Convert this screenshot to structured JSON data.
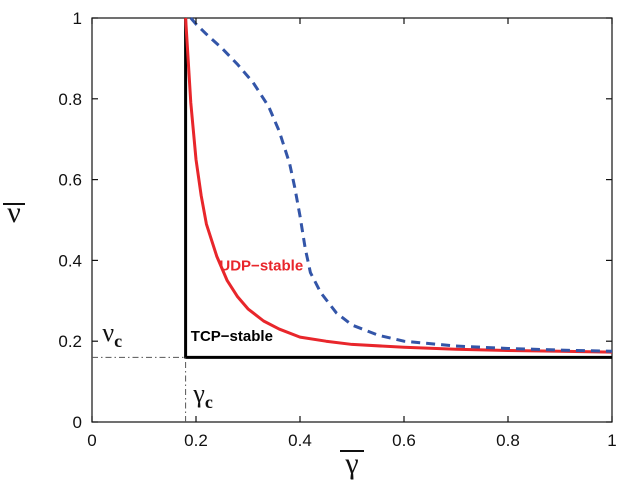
{
  "chart_data": {
    "type": "line",
    "title": "",
    "xlabel": "γ",
    "ylabel": "ν",
    "xlim": [
      0,
      1
    ],
    "ylim": [
      0,
      1
    ],
    "xticks": [
      0,
      0.2,
      0.4,
      0.6,
      0.8,
      1
    ],
    "yticks": [
      0,
      0.2,
      0.4,
      0.6,
      0.8,
      1
    ],
    "xtick_labels": [
      "0",
      "0.2",
      "0.4",
      "0.6",
      "0.8",
      "1"
    ],
    "ytick_labels": [
      "0",
      "0.2",
      "0.4",
      "0.6",
      "0.8",
      "1"
    ],
    "grid": false,
    "series": [
      {
        "style": "solid",
        "color": "#000000",
        "x": [
          0.18,
          0.18,
          1.0
        ],
        "y": [
          1.0,
          0.16,
          0.16
        ]
      },
      {
        "style": "solid",
        "color": "#e8262b",
        "x": [
          0.18,
          0.19,
          0.2,
          0.21,
          0.22,
          0.24,
          0.26,
          0.28,
          0.3,
          0.33,
          0.36,
          0.4,
          0.45,
          0.5,
          0.6,
          0.7,
          0.8,
          0.9,
          1.0
        ],
        "y": [
          1.0,
          0.79,
          0.65,
          0.56,
          0.49,
          0.41,
          0.35,
          0.31,
          0.28,
          0.25,
          0.23,
          0.21,
          0.2,
          0.192,
          0.185,
          0.18,
          0.177,
          0.175,
          0.173
        ]
      },
      {
        "style": "dashed",
        "color": "#3355a8",
        "x": [
          0.19,
          0.2,
          0.22,
          0.25,
          0.28,
          0.31,
          0.34,
          0.36,
          0.38,
          0.39,
          0.4,
          0.41,
          0.42,
          0.44,
          0.47,
          0.5,
          0.55,
          0.6,
          0.7,
          0.8,
          0.9,
          1.0
        ],
        "y": [
          1.0,
          0.985,
          0.96,
          0.925,
          0.885,
          0.84,
          0.78,
          0.72,
          0.64,
          0.58,
          0.51,
          0.43,
          0.37,
          0.32,
          0.27,
          0.24,
          0.215,
          0.2,
          0.188,
          0.182,
          0.178,
          0.175
        ]
      },
      {
        "style": "dashdot",
        "color": "#555555",
        "x": [
          0.0,
          0.18
        ],
        "y": [
          0.16,
          0.16
        ]
      },
      {
        "style": "dashdot",
        "color": "#555555",
        "x": [
          0.18,
          0.18
        ],
        "y": [
          0.0,
          0.16
        ]
      }
    ],
    "annotations": [
      {
        "text": "UDP−stable",
        "x": 0.245,
        "y": 0.375,
        "color": "#e8262b"
      },
      {
        "text": "TCP−stable",
        "x": 0.19,
        "y": 0.2,
        "color": "#000000"
      },
      {
        "text": "ν",
        "sub": "c",
        "x": 0.02,
        "y": 0.2
      },
      {
        "text": "γ",
        "sub": "c",
        "x": 0.195,
        "y": 0.05
      }
    ]
  }
}
